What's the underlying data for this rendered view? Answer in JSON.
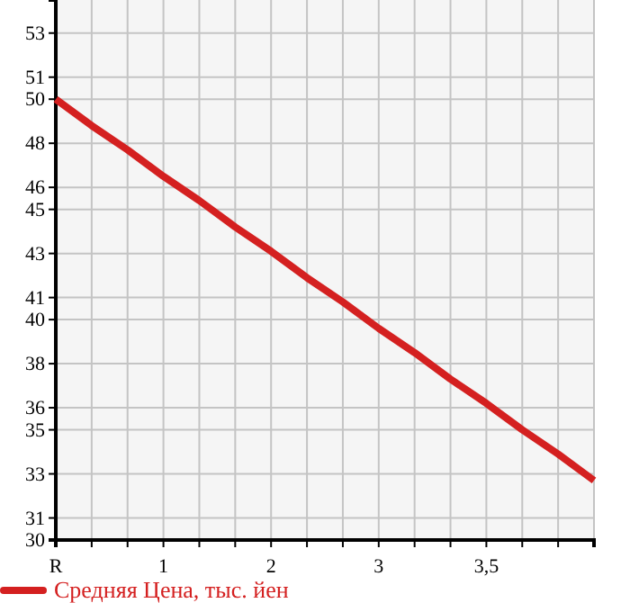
{
  "chart_data": {
    "type": "line",
    "categories": [
      "R",
      null,
      null,
      "1",
      null,
      null,
      "2",
      null,
      null,
      "3",
      null,
      null,
      "3,5",
      null,
      null,
      null
    ],
    "series": [
      {
        "name": "Средняя Цена, тыс. йен",
        "color": "#d42020",
        "values": [
          50,
          48.8,
          47.7,
          46.5,
          45.4,
          44.2,
          43.1,
          41.9,
          40.8,
          39.6,
          38.5,
          37.3,
          36.2,
          35.0,
          33.9,
          32.7
        ]
      }
    ],
    "ylim": [
      30,
      54.5
    ],
    "yticks": [
      30,
      31,
      33,
      35,
      36,
      38,
      40,
      41,
      43,
      45,
      46,
      48,
      50,
      51,
      53
    ],
    "grid": true,
    "legend": "bottom",
    "marker": "none",
    "line_style": "solid"
  }
}
